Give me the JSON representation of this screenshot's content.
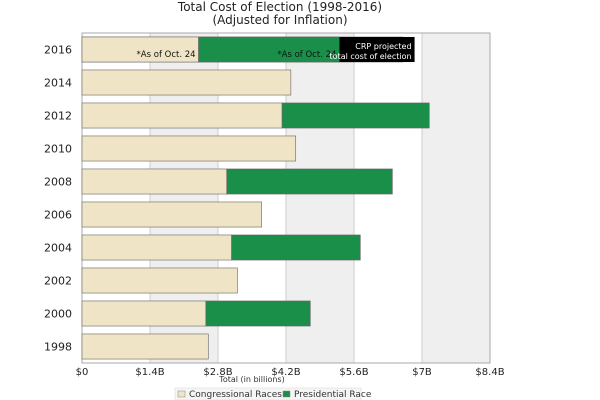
{
  "chart_data": {
    "type": "bar",
    "orientation": "horizontal",
    "stacked": true,
    "title": "Total Cost of Election (1998-2016)",
    "subtitle": "(Adjusted for Inflation)",
    "xlabel": "Total (in billions)",
    "ylabel": "",
    "xlim": [
      0,
      8.4
    ],
    "xtick_labels": [
      "$0",
      "$1.4B",
      "$2.8B",
      "$4.2B",
      "$5.6B",
      "$7B",
      "$8.4B"
    ],
    "xtick_values": [
      0,
      1.4,
      2.8,
      4.2,
      5.6,
      7,
      8.4
    ],
    "categories": [
      "2016",
      "2014",
      "2012",
      "2010",
      "2008",
      "2006",
      "2004",
      "2002",
      "2000",
      "1998"
    ],
    "series": [
      {
        "name": "Congressional Races",
        "color": "#f0e4c6",
        "values": [
          2.4,
          4.3,
          4.12,
          4.4,
          2.98,
          3.7,
          3.08,
          3.2,
          2.55,
          2.6
        ]
      },
      {
        "name": "Presidential Race",
        "color": "#1a8f4a",
        "values": [
          2.9,
          0,
          3.03,
          0,
          3.41,
          0,
          2.65,
          0,
          2.15,
          0
        ]
      }
    ],
    "projection": {
      "category": "2016",
      "value": 6.6,
      "color": "#f0f0f0"
    },
    "annotations": [
      {
        "text": "*As of Oct. 24",
        "series": "Congressional Races",
        "category": "2016"
      },
      {
        "text": "*As of Oct. 24",
        "series": "Presidential Race",
        "category": "2016"
      }
    ],
    "callout": {
      "lines": [
        "CRP projected",
        "total cost of election"
      ],
      "color": "#000000"
    },
    "background_bands": "alternating gray every 1.4B",
    "grid": true,
    "legend": {
      "position": "bottom"
    }
  }
}
